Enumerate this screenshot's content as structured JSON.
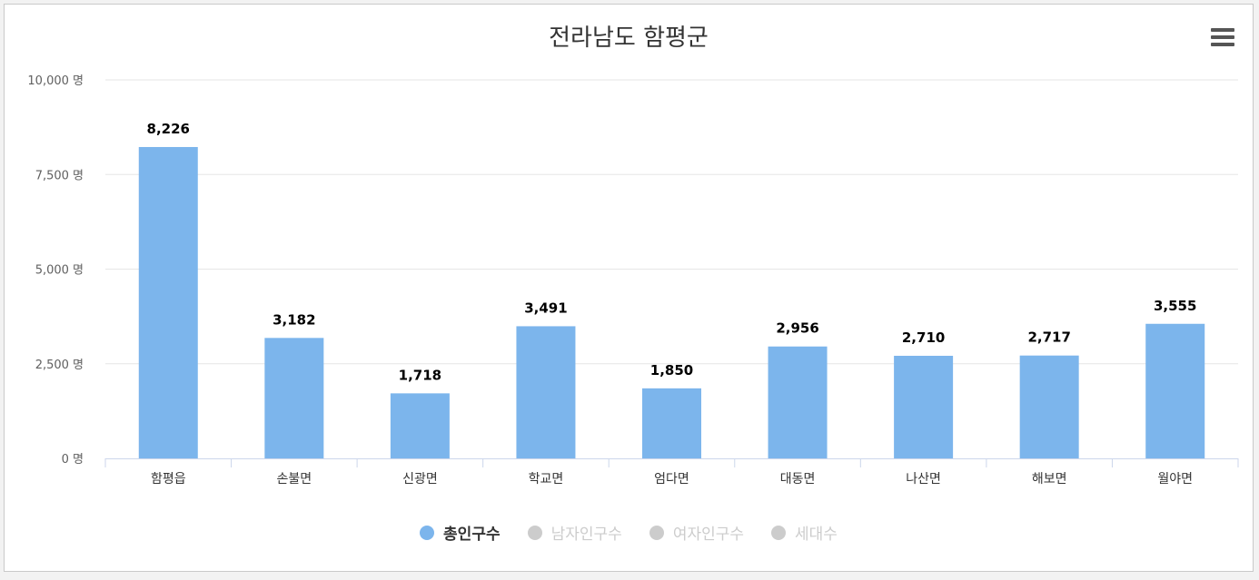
{
  "chart_data": {
    "type": "bar",
    "title": "전라남도 함평군",
    "categories": [
      "함평읍",
      "손불면",
      "신광면",
      "학교면",
      "엄다면",
      "대동면",
      "나산면",
      "해보면",
      "월야면"
    ],
    "series": [
      {
        "name": "총인구수",
        "values": [
          8226,
          3182,
          1718,
          3491,
          1850,
          2956,
          2710,
          2717,
          3555
        ],
        "active": true
      }
    ],
    "data_labels": [
      "8,226",
      "3,182",
      "1,718",
      "3,491",
      "1,850",
      "2,956",
      "2,710",
      "2,717",
      "3,555"
    ],
    "yticks": [
      "0 명",
      "2,500 명",
      "5,000 명",
      "7,500 명",
      "10,000 명"
    ],
    "ylim": [
      0,
      10000
    ],
    "ytick_step": 2500,
    "grid": true,
    "legend_position": "bottom-center"
  },
  "legend": {
    "items": [
      {
        "label": "총인구수",
        "active": true
      },
      {
        "label": "남자인구수",
        "active": false
      },
      {
        "label": "여자인구수",
        "active": false
      },
      {
        "label": "세대수",
        "active": false
      }
    ]
  },
  "colors": {
    "bar": "#7cb5ec",
    "inactive": "#cccccc",
    "grid": "#e6e6e6",
    "axis": "#ccd6eb",
    "text": "#333333",
    "label": "#000000"
  }
}
